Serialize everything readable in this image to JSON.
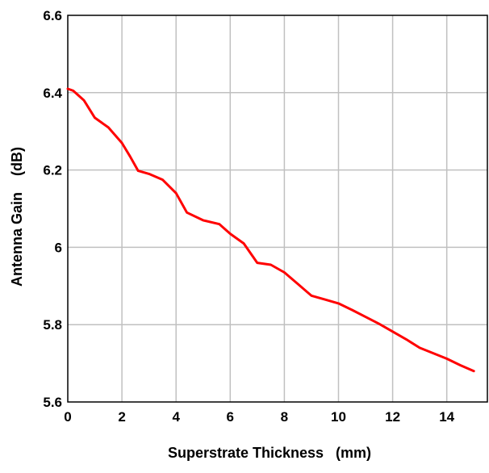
{
  "chart_data": {
    "type": "line",
    "title": "",
    "xlabel": "Superstrate Thickness   (mm)",
    "ylabel": "Antenna Gain    (dB)",
    "xlim": [
      0,
      15.5
    ],
    "ylim": [
      5.6,
      6.6
    ],
    "xticks": [
      0,
      2,
      4,
      6,
      8,
      10,
      12,
      14
    ],
    "xtick_labels": [
      "0",
      "2",
      "4",
      "6",
      "8",
      "10",
      "12",
      "14"
    ],
    "yticks": [
      5.6,
      5.8,
      6.0,
      6.2,
      6.4,
      6.6
    ],
    "ytick_labels": [
      "5.6",
      "5.8",
      "6",
      "6.2",
      "6.4",
      "6.6"
    ],
    "grid": true,
    "legend": "none",
    "line_color": "#ff0000",
    "grid_color": "#c0c0c0",
    "series": [
      {
        "x": [
          0,
          0.2,
          0.6,
          1.0,
          1.5,
          2.0,
          2.3,
          2.6,
          3.0,
          3.5,
          4.0,
          4.4,
          5.0,
          5.6,
          6.0,
          6.5,
          7.0,
          7.5,
          8.0,
          8.5,
          9.0,
          9.5,
          10.0,
          10.5,
          11.0,
          11.5,
          12.0,
          12.5,
          13.0,
          13.5,
          14.0,
          14.5,
          15.0
        ],
        "y": [
          6.41,
          6.405,
          6.38,
          6.335,
          6.31,
          6.27,
          6.235,
          6.198,
          6.19,
          6.175,
          6.14,
          6.09,
          6.07,
          6.06,
          6.035,
          6.01,
          5.96,
          5.955,
          5.935,
          5.905,
          5.875,
          5.865,
          5.855,
          5.838,
          5.82,
          5.802,
          5.782,
          5.762,
          5.74,
          5.726,
          5.712,
          5.695,
          5.68
        ]
      }
    ]
  }
}
